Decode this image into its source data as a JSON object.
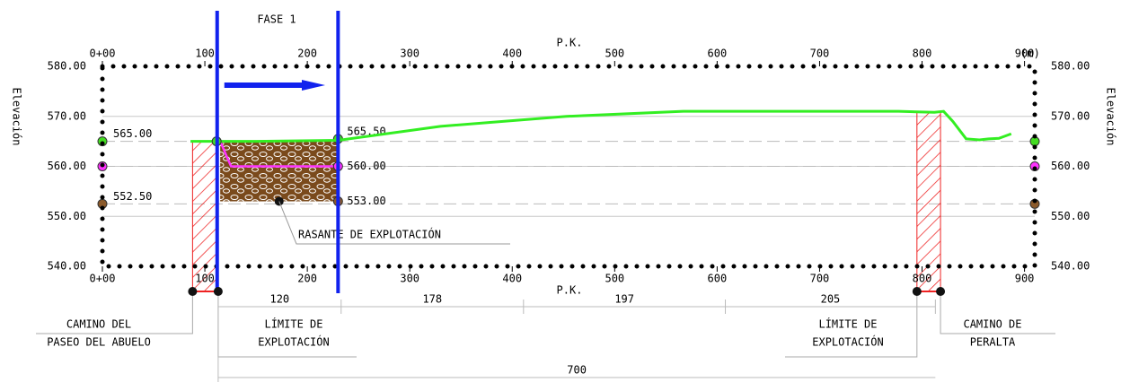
{
  "chart_data": {
    "type": "line",
    "x_label": "P.K.",
    "x_unit": "(m)",
    "y_label": "Elevación",
    "xlim": [
      0,
      910
    ],
    "ylim": [
      540,
      580
    ],
    "xticks": [
      {
        "value": 0,
        "label": "0+00"
      },
      100,
      200,
      300,
      400,
      500,
      600,
      700,
      800,
      900
    ],
    "yticks": [
      {
        "value": 540,
        "label": "540.00"
      },
      {
        "value": 550,
        "label": "550.00"
      },
      {
        "value": 560,
        "label": "560.00"
      },
      {
        "value": 570,
        "label": "570.00"
      },
      {
        "value": 580,
        "label": "580.00"
      }
    ],
    "x": [
      86,
      150,
      230,
      330,
      453,
      567,
      700,
      777,
      812,
      821,
      830,
      843,
      856,
      865,
      875,
      887
    ],
    "values": [
      565,
      565,
      565.2,
      568,
      570,
      571,
      571,
      571,
      570.8,
      571,
      569,
      565.5,
      565.3,
      565.5,
      565.6,
      566.5
    ],
    "color": "#33ee22",
    "levels": [
      {
        "value": 565,
        "label": "565.00",
        "color": "#44dd22"
      },
      {
        "value": 560,
        "color": "#ff33ff"
      },
      {
        "value": 552.5,
        "label": "552.50",
        "color": "#8b5a2b"
      }
    ],
    "excavation": {
      "label": "RASANTE DE EXPLOTACIÓN",
      "x": [
        115,
        230
      ],
      "top": 565,
      "floor": 553,
      "bench": 560,
      "points": [
        {
          "x": 230,
          "y": 565.5,
          "label": "565.50"
        },
        {
          "x": 230,
          "y": 560,
          "label": "560.00"
        },
        {
          "x": 230,
          "y": 553,
          "label": "553.00"
        }
      ]
    },
    "phase": {
      "label": "FASE 1",
      "x": [
        112,
        230
      ]
    },
    "limits": [
      {
        "label": [
          "CAMINO DEL",
          "PASEO DEL ABUELO"
        ],
        "x": 88
      },
      {
        "label": [
          "LÍMITE DE",
          "EXPLOTACIÓN"
        ],
        "x": 113
      },
      {
        "label": [
          "LÍMITE DE",
          "EXPLOTACIÓN"
        ],
        "x": 795
      },
      {
        "label": [
          "CAMINO DE",
          "PERALTA"
        ],
        "x": 818
      }
    ],
    "dimensions": {
      "start": 113,
      "values": [
        120,
        178,
        197,
        205
      ],
      "total": 700
    }
  }
}
